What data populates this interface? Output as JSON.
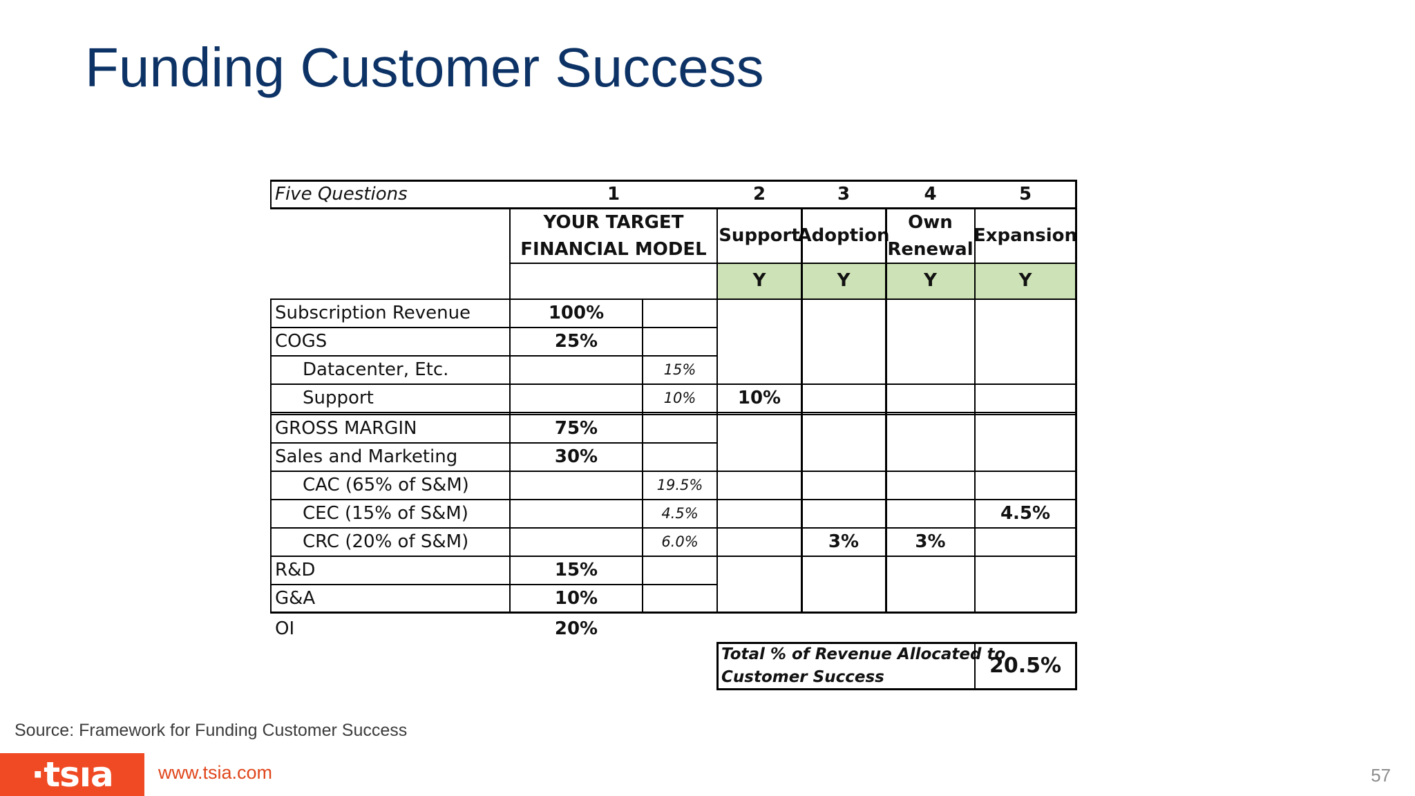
{
  "slide": {
    "title": "Funding Customer Success",
    "source": "Source: Framework for Funding Customer Success",
    "logo_text": "·tsıa",
    "url": "www.tsia.com",
    "page_number": "57"
  },
  "table": {
    "corner_label": "Five Questions",
    "question_numbers": [
      "1",
      "2",
      "3",
      "4",
      "5"
    ],
    "col1_header_line1": "YOUR TARGET",
    "col1_header_line2": "FINANCIAL MODEL",
    "col_headers": [
      "Support",
      "Adoption",
      "Own",
      "Renewal",
      "Expansion"
    ],
    "answers": [
      "Y",
      "Y",
      "Y",
      "Y"
    ],
    "rows": [
      {
        "label": "Subscription Revenue",
        "pct": "100%",
        "sub": ""
      },
      {
        "label": "COGS",
        "pct": "25%",
        "sub": ""
      },
      {
        "label": "Datacenter, Etc.",
        "pct": "",
        "sub": "15%"
      },
      {
        "label": "Support",
        "pct": "",
        "sub": "10%"
      },
      {
        "label": "GROSS MARGIN",
        "pct": "75%",
        "sub": ""
      },
      {
        "label": "Sales and Marketing",
        "pct": "30%",
        "sub": ""
      },
      {
        "label": "CAC (65% of S&M)",
        "pct": "",
        "sub": "19.5%"
      },
      {
        "label": "CEC (15% of S&M)",
        "pct": "",
        "sub": "4.5%"
      },
      {
        "label": "CRC (20% of S&M)",
        "pct": "",
        "sub": "6.0%"
      },
      {
        "label": "R&D",
        "pct": "15%",
        "sub": ""
      },
      {
        "label": "G&A",
        "pct": "10%",
        "sub": ""
      },
      {
        "label": "OI",
        "pct": "20%",
        "sub": ""
      }
    ],
    "allocations": {
      "support_row_support": "10%",
      "cec_row_expansion": "4.5%",
      "crc_row_adoption": "3%",
      "crc_row_renewal": "3%"
    },
    "total_label_line1": "Total % of Revenue Allocated to",
    "total_label_line2": "Customer Success",
    "total_value": "20.5%"
  }
}
